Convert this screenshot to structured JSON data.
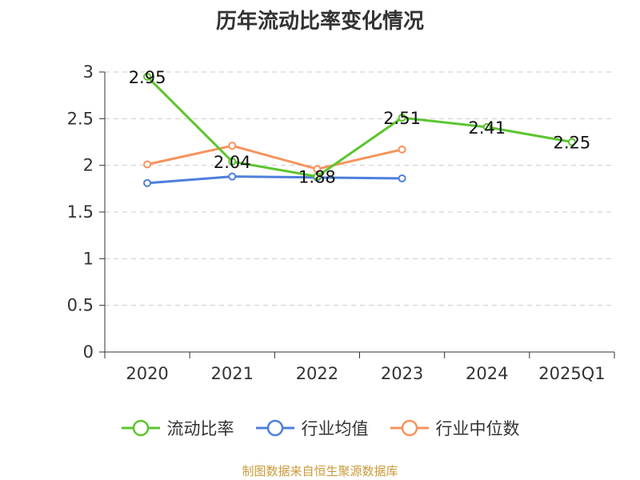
{
  "chart_data": {
    "type": "line",
    "title": "历年流动比率变化情况",
    "categories": [
      "2020",
      "2021",
      "2022",
      "2023",
      "2024",
      "2025Q1"
    ],
    "ylim": [
      0,
      3
    ],
    "yticks": [
      "0",
      "0.5",
      "1",
      "1.5",
      "2",
      "2.5",
      "3"
    ],
    "grid": true,
    "legend_position": "bottom",
    "series": [
      {
        "name": "流动比率",
        "color": "#5cc52f",
        "values": [
          2.95,
          2.04,
          1.88,
          2.51,
          2.41,
          2.25
        ],
        "labels": [
          "2.95",
          "2.04",
          "1.88",
          "2.51",
          "2.41",
          "2.25"
        ]
      },
      {
        "name": "行业均值",
        "color": "#4e7fdc",
        "values": [
          1.81,
          1.88,
          1.87,
          1.86,
          null,
          null
        ]
      },
      {
        "name": "行业中位数",
        "color": "#f6935c",
        "values": [
          2.01,
          2.21,
          1.96,
          2.17,
          null,
          null
        ]
      }
    ]
  },
  "source_text": "制图数据来自恒生聚源数据库"
}
